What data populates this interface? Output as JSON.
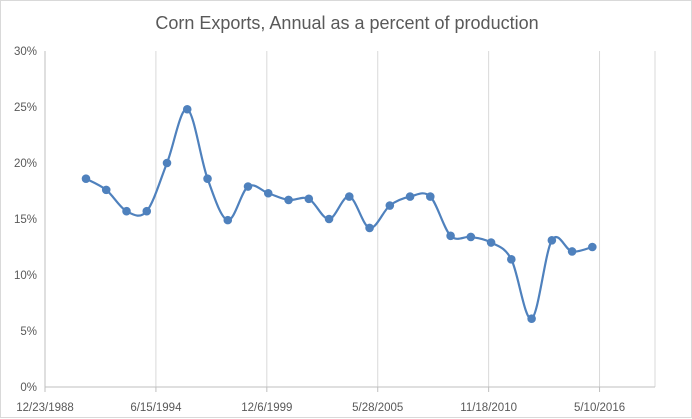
{
  "chart_data": {
    "type": "line",
    "title": "Corn Exports, Annual as a percent of production",
    "xlabel": "",
    "ylabel": "",
    "x_tick_labels": [
      "12/23/1988",
      "6/15/1994",
      "12/6/1999",
      "5/28/2005",
      "11/18/2010",
      "5/10/2016"
    ],
    "x_ticks": [
      "1988-12-23",
      "1994-06-15",
      "1999-12-06",
      "2005-05-28",
      "2010-11-18",
      "2016-05-10"
    ],
    "xlim": [
      "1988-12-23",
      "2019-02-04"
    ],
    "y_tick_labels": [
      "0%",
      "5%",
      "10%",
      "15%",
      "20%",
      "25%",
      "30%"
    ],
    "ylim": [
      0,
      30
    ],
    "grid": "vertical gridlines only",
    "smoothed": true,
    "series": [
      {
        "color": "#4f81bd",
        "x": [
          "1991-01-01",
          "1992-01-01",
          "1993-01-01",
          "1994-01-01",
          "1995-01-01",
          "1996-01-01",
          "1997-01-01",
          "1998-01-01",
          "1999-01-01",
          "2000-01-01",
          "2001-01-01",
          "2002-01-01",
          "2003-01-01",
          "2004-01-01",
          "2005-01-01",
          "2006-01-01",
          "2007-01-01",
          "2008-01-01",
          "2009-01-01",
          "2010-01-01",
          "2011-01-01",
          "2012-01-01",
          "2013-01-01",
          "2014-01-01",
          "2015-01-01",
          "2016-01-01"
        ],
        "values": [
          18.6,
          17.6,
          15.7,
          15.7,
          20.0,
          24.8,
          18.6,
          14.9,
          17.9,
          17.3,
          16.7,
          16.8,
          15.0,
          17.0,
          14.2,
          16.2,
          17.0,
          17.0,
          13.5,
          13.4,
          12.9,
          11.4,
          6.1,
          13.1,
          12.1,
          12.5
        ]
      }
    ]
  }
}
